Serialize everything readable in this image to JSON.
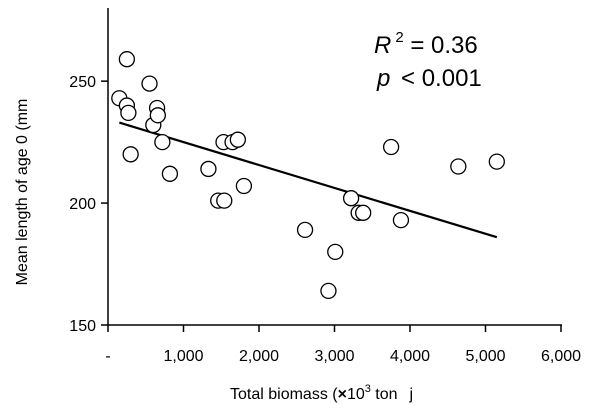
{
  "chart_data": {
    "type": "scatter",
    "xlabel": "Total biomass (×10³ ton)",
    "xlabel_main": "Total biomass (",
    "xlabel_times": "×",
    "xlabel_base": "10",
    "xlabel_exp": "3",
    "xlabel_unit": " ton",
    "xlabel_close": "j",
    "ylabel": "Mean length of age 0 (mm",
    "xlim": [
      0,
      6000
    ],
    "ylim": [
      150,
      280
    ],
    "x_ticks": [
      0,
      1000,
      2000,
      3000,
      4000,
      5000,
      6000
    ],
    "x_tick_labels": [
      "-",
      "1,000",
      "2,000",
      "3,000",
      "4,000",
      "5,000",
      "6,000"
    ],
    "y_ticks": [
      150,
      200,
      250
    ],
    "y_tick_labels": [
      "150",
      "200",
      "250"
    ],
    "grid": false,
    "annotations": {
      "r2_letter": "R",
      "r2_exp": "2",
      "r2_rest": " = 0.36",
      "p_letter": "p",
      "p_rest": " < 0.001"
    },
    "points": [
      {
        "x": 150,
        "y": 243
      },
      {
        "x": 250,
        "y": 240
      },
      {
        "x": 250,
        "y": 259
      },
      {
        "x": 270,
        "y": 237
      },
      {
        "x": 300,
        "y": 220
      },
      {
        "x": 550,
        "y": 249
      },
      {
        "x": 600,
        "y": 232
      },
      {
        "x": 650,
        "y": 239
      },
      {
        "x": 660,
        "y": 236
      },
      {
        "x": 720,
        "y": 225
      },
      {
        "x": 820,
        "y": 212
      },
      {
        "x": 1330,
        "y": 214
      },
      {
        "x": 1460,
        "y": 201
      },
      {
        "x": 1530,
        "y": 225
      },
      {
        "x": 1540,
        "y": 201
      },
      {
        "x": 1650,
        "y": 225
      },
      {
        "x": 1720,
        "y": 226
      },
      {
        "x": 1800,
        "y": 207
      },
      {
        "x": 2610,
        "y": 189
      },
      {
        "x": 2920,
        "y": 164
      },
      {
        "x": 3010,
        "y": 180
      },
      {
        "x": 3220,
        "y": 202
      },
      {
        "x": 3320,
        "y": 196
      },
      {
        "x": 3380,
        "y": 196
      },
      {
        "x": 3750,
        "y": 223
      },
      {
        "x": 3880,
        "y": 193
      },
      {
        "x": 4640,
        "y": 215
      },
      {
        "x": 5150,
        "y": 217
      }
    ],
    "trendline": {
      "x": [
        150,
        5150
      ],
      "y": [
        233,
        186
      ]
    }
  }
}
